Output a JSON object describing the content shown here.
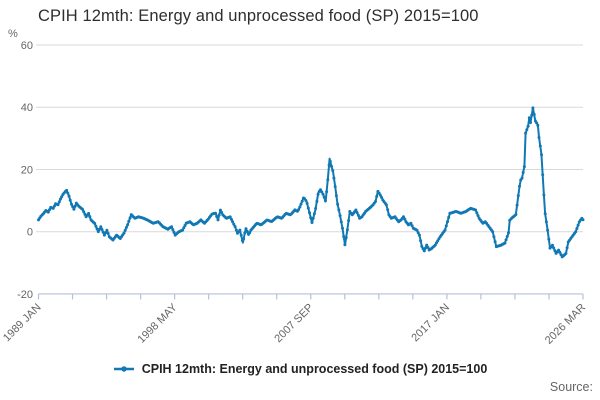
{
  "chart_data": {
    "type": "line",
    "title": "CPIH 12mth: Energy and unprocessed food (SP) 2015=100",
    "unit_label": "%",
    "x_tick_labels": [
      "1989 JAN",
      "1998 MAY",
      "2007 SEP",
      "2017 JAN",
      "2026 MAR"
    ],
    "x_range": [
      1989.0,
      2026.1667
    ],
    "x_minor_tick_intervals": 16,
    "y_ticks": [
      60,
      40,
      20,
      0,
      -20
    ],
    "y_range": [
      -20,
      60
    ],
    "grid": "horizontal-only",
    "legend_position": "bottom-center",
    "series": [
      {
        "name": "CPIH 12mth: Energy and unprocessed food (SP) 2015=100",
        "color": "#1178b4",
        "marker": "line-dot",
        "points": [
          [
            1989.0,
            3.8
          ],
          [
            1989.17,
            5.0
          ],
          [
            1989.33,
            5.8
          ],
          [
            1989.5,
            6.8
          ],
          [
            1989.67,
            6.3
          ],
          [
            1989.83,
            7.8
          ],
          [
            1990.0,
            7.5
          ],
          [
            1990.17,
            9.0
          ],
          [
            1990.33,
            8.6
          ],
          [
            1990.5,
            10.5
          ],
          [
            1990.67,
            12.0
          ],
          [
            1990.83,
            12.9
          ],
          [
            1990.92,
            13.3
          ],
          [
            1991.08,
            11.5
          ],
          [
            1991.25,
            8.8
          ],
          [
            1991.42,
            7.2
          ],
          [
            1991.58,
            9.2
          ],
          [
            1991.75,
            8.2
          ],
          [
            1992.0,
            7.2
          ],
          [
            1992.25,
            4.8
          ],
          [
            1992.42,
            5.9
          ],
          [
            1992.58,
            3.8
          ],
          [
            1992.83,
            2.7
          ],
          [
            1993.08,
            0.0
          ],
          [
            1993.25,
            1.6
          ],
          [
            1993.5,
            -1.1
          ],
          [
            1993.67,
            0.5
          ],
          [
            1993.83,
            -1.6
          ],
          [
            1994.08,
            -2.7
          ],
          [
            1994.33,
            -1.1
          ],
          [
            1994.58,
            -2.2
          ],
          [
            1994.83,
            -0.5
          ],
          [
            1995.08,
            2.2
          ],
          [
            1995.33,
            5.5
          ],
          [
            1995.58,
            4.3
          ],
          [
            1995.83,
            4.8
          ],
          [
            1996.17,
            4.3
          ],
          [
            1996.5,
            3.6
          ],
          [
            1996.83,
            2.7
          ],
          [
            1997.17,
            3.2
          ],
          [
            1997.5,
            1.6
          ],
          [
            1997.83,
            0.8
          ],
          [
            1998.08,
            1.6
          ],
          [
            1998.33,
            -1.1
          ],
          [
            1998.58,
            0.0
          ],
          [
            1998.83,
            0.5
          ],
          [
            1999.08,
            2.7
          ],
          [
            1999.33,
            3.2
          ],
          [
            1999.58,
            2.2
          ],
          [
            1999.83,
            2.7
          ],
          [
            2000.08,
            3.8
          ],
          [
            2000.33,
            2.7
          ],
          [
            2000.58,
            4.0
          ],
          [
            2000.83,
            5.6
          ],
          [
            2001.08,
            6.0
          ],
          [
            2001.25,
            3.8
          ],
          [
            2001.42,
            7.0
          ],
          [
            2001.58,
            5.4
          ],
          [
            2001.83,
            4.3
          ],
          [
            2002.08,
            4.8
          ],
          [
            2002.42,
            1.6
          ],
          [
            2002.58,
            -0.5
          ],
          [
            2002.75,
            0.5
          ],
          [
            2002.95,
            -3.5
          ],
          [
            2003.15,
            1.1
          ],
          [
            2003.35,
            -1.0
          ],
          [
            2003.5,
            0.5
          ],
          [
            2003.9,
            2.7
          ],
          [
            2004.2,
            2.2
          ],
          [
            2004.6,
            3.8
          ],
          [
            2004.9,
            3.2
          ],
          [
            2005.3,
            4.8
          ],
          [
            2005.6,
            4.3
          ],
          [
            2005.9,
            5.9
          ],
          [
            2006.2,
            5.4
          ],
          [
            2006.5,
            7.0
          ],
          [
            2006.7,
            6.5
          ],
          [
            2006.9,
            8.6
          ],
          [
            2007.1,
            11.0
          ],
          [
            2007.3,
            9.7
          ],
          [
            2007.45,
            7.0
          ],
          [
            2007.67,
            2.9
          ],
          [
            2007.9,
            7.0
          ],
          [
            2008.1,
            12.5
          ],
          [
            2008.25,
            13.5
          ],
          [
            2008.45,
            11.8
          ],
          [
            2008.6,
            9.7
          ],
          [
            2008.75,
            16.7
          ],
          [
            2008.87,
            23.5
          ],
          [
            2009.0,
            21.0
          ],
          [
            2009.1,
            19.4
          ],
          [
            2009.25,
            14.5
          ],
          [
            2009.4,
            9.2
          ],
          [
            2009.6,
            4.8
          ],
          [
            2009.75,
            1.1
          ],
          [
            2009.92,
            -4.3
          ],
          [
            2010.08,
            0.5
          ],
          [
            2010.25,
            6.5
          ],
          [
            2010.42,
            5.4
          ],
          [
            2010.67,
            7.0
          ],
          [
            2010.92,
            4.3
          ],
          [
            2011.08,
            4.8
          ],
          [
            2011.33,
            6.5
          ],
          [
            2011.58,
            7.5
          ],
          [
            2011.83,
            8.6
          ],
          [
            2012.0,
            9.7
          ],
          [
            2012.17,
            13.0
          ],
          [
            2012.33,
            11.8
          ],
          [
            2012.5,
            10.2
          ],
          [
            2012.75,
            8.6
          ],
          [
            2012.92,
            5.4
          ],
          [
            2013.08,
            4.3
          ],
          [
            2013.33,
            4.8
          ],
          [
            2013.58,
            3.2
          ],
          [
            2013.75,
            3.8
          ],
          [
            2013.92,
            4.8
          ],
          [
            2014.08,
            3.2
          ],
          [
            2014.25,
            2.2
          ],
          [
            2014.42,
            2.7
          ],
          [
            2014.58,
            1.1
          ],
          [
            2014.83,
            0.5
          ],
          [
            2015.0,
            -1.1
          ],
          [
            2015.17,
            -4.8
          ],
          [
            2015.33,
            -6.2
          ],
          [
            2015.5,
            -4.3
          ],
          [
            2015.67,
            -5.9
          ],
          [
            2015.83,
            -5.4
          ],
          [
            2016.08,
            -4.3
          ],
          [
            2016.42,
            -1.6
          ],
          [
            2016.75,
            0.5
          ],
          [
            2017.08,
            5.9
          ],
          [
            2017.5,
            6.5
          ],
          [
            2017.83,
            5.9
          ],
          [
            2018.17,
            6.5
          ],
          [
            2018.5,
            7.5
          ],
          [
            2018.83,
            7.0
          ],
          [
            2019.08,
            4.3
          ],
          [
            2019.33,
            2.7
          ],
          [
            2019.5,
            3.2
          ],
          [
            2019.75,
            1.6
          ],
          [
            2020.0,
            0.0
          ],
          [
            2020.25,
            -4.8
          ],
          [
            2020.58,
            -4.3
          ],
          [
            2020.83,
            -3.7
          ],
          [
            2021.08,
            -0.5
          ],
          [
            2021.17,
            3.8
          ],
          [
            2021.42,
            4.8
          ],
          [
            2021.58,
            5.4
          ],
          [
            2021.83,
            14.5
          ],
          [
            2021.92,
            16.7
          ],
          [
            2022.0,
            17.2
          ],
          [
            2022.17,
            21.0
          ],
          [
            2022.25,
            31.7
          ],
          [
            2022.42,
            33.9
          ],
          [
            2022.5,
            36.6
          ],
          [
            2022.58,
            35.0
          ],
          [
            2022.75,
            39.8
          ],
          [
            2022.92,
            35.5
          ],
          [
            2023.08,
            34.4
          ],
          [
            2023.17,
            30.1
          ],
          [
            2023.33,
            25.0
          ],
          [
            2023.5,
            11.8
          ],
          [
            2023.58,
            5.9
          ],
          [
            2023.75,
            0.5
          ],
          [
            2023.92,
            -5.4
          ],
          [
            2024.08,
            -4.3
          ],
          [
            2024.33,
            -7.0
          ],
          [
            2024.5,
            -5.9
          ],
          [
            2024.75,
            -8.1
          ],
          [
            2025.0,
            -7.0
          ],
          [
            2025.17,
            -3.2
          ],
          [
            2025.42,
            -1.6
          ],
          [
            2025.67,
            0.0
          ],
          [
            2025.92,
            3.2
          ],
          [
            2026.08,
            4.3
          ],
          [
            2026.17,
            3.8
          ]
        ]
      }
    ]
  },
  "footer": {
    "source_label": "Source:"
  },
  "colors": {
    "line": "#1178b4",
    "grid": "#d9d9d9",
    "axis": "#b4c1d9",
    "tick_text": "#666666",
    "title_text": "#2e2e2e",
    "legend_text": "#222222",
    "background": "#ffffff"
  }
}
